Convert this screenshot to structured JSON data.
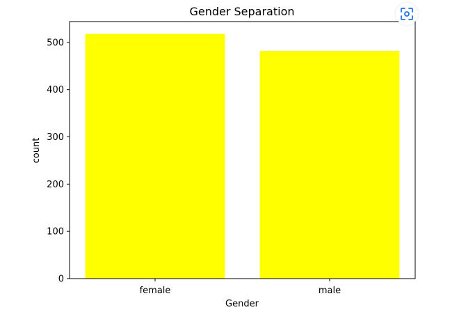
{
  "chart_data": {
    "type": "bar",
    "title": "Gender Separation",
    "xlabel": "Gender",
    "ylabel": "count",
    "categories": [
      "female",
      "male"
    ],
    "values": [
      518,
      482
    ],
    "ylim": [
      0,
      544
    ],
    "yticks": [
      "0",
      "100",
      "200",
      "300",
      "400",
      "500"
    ],
    "bar_color": "#ffff00",
    "grid": false
  },
  "toolbar": {
    "focus_icon": "focus-scan-icon",
    "accent_color": "#1a73e8"
  }
}
